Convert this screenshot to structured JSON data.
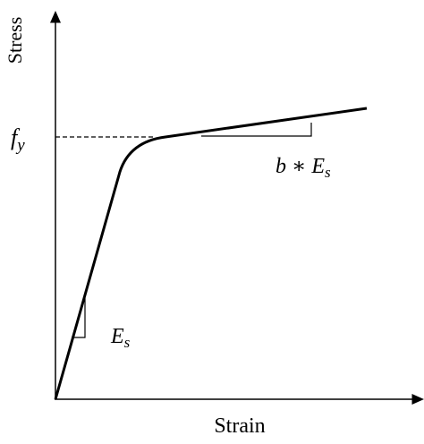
{
  "axes": {
    "y_label": "Stress",
    "x_label": "Strain"
  },
  "annotations": {
    "yield": {
      "symbol": "f",
      "subscript": "y"
    },
    "elastic_slope": {
      "symbol": "E",
      "subscript": "s"
    },
    "hardening_slope": {
      "prefix": "b ∗ ",
      "symbol": "E",
      "subscript": "s"
    }
  }
}
